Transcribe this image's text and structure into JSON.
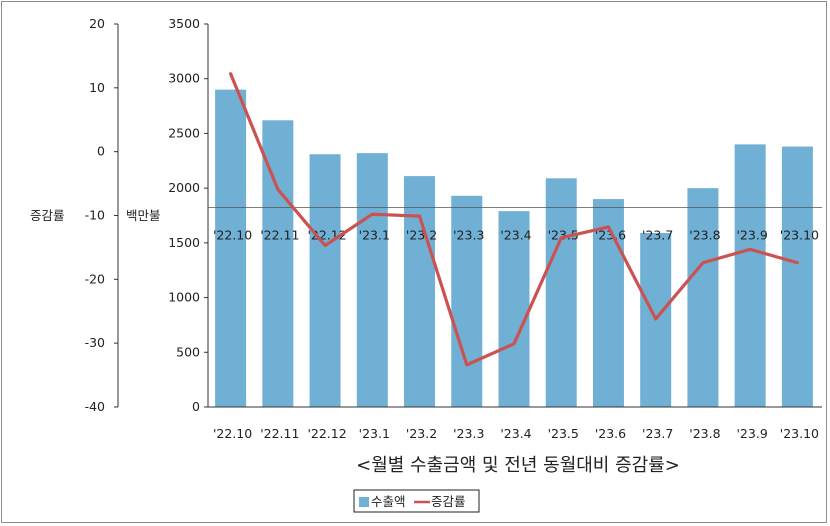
{
  "chart_data": {
    "type": "bar",
    "title": "<월별 수출금액 및 전년 동월대비 증감률>",
    "categories": [
      "'22.10",
      "'22.11",
      "'22.12",
      "'23.1",
      "'23.2",
      "'23.3",
      "'23.4",
      "'23.5",
      "'23.6",
      "'23.7",
      "'23.8",
      "'23.9",
      "'23.10"
    ],
    "left_axis": {
      "label": "증감률",
      "ticks": [
        "20",
        "10",
        "0",
        "-10",
        "-20",
        "-30",
        "-40"
      ],
      "range": [
        -40,
        20
      ]
    },
    "right_axis": {
      "label": "백만불",
      "ticks": [
        "3500",
        "3000",
        "2500",
        "2000",
        "1500",
        "1000",
        "500",
        "0"
      ],
      "range": [
        0,
        3500
      ]
    },
    "series": [
      {
        "name": "수출액",
        "type": "bar",
        "axis": "right",
        "color": "#6fb0d4",
        "values": [
          2900,
          2620,
          2310,
          2320,
          2110,
          1930,
          1790,
          2090,
          1900,
          1590,
          2000,
          2400,
          2380
        ]
      },
      {
        "name": "증감률",
        "type": "line",
        "axis": "left",
        "color": "#cc5252",
        "values": [
          12.2,
          -5.9,
          -14.7,
          -9.8,
          -10.1,
          -33.4,
          -30.1,
          -13.5,
          -11.8,
          -26.2,
          -17.4,
          -15.3,
          -17.4
        ]
      }
    ],
    "legend": {
      "position": "bottom-center"
    },
    "grid": false
  }
}
